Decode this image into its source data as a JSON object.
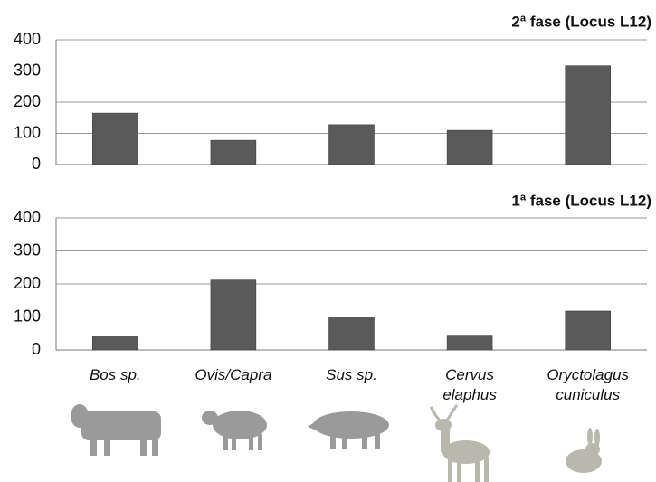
{
  "chart_data": [
    {
      "type": "bar",
      "title": "2ª fase (Locus L12)",
      "values": [
        165,
        78,
        128,
        110,
        317
      ],
      "color": "#5a5a5a",
      "ylim": [
        0,
        400
      ],
      "yticks": [
        0,
        100,
        200,
        300,
        400
      ],
      "grid": true
    },
    {
      "type": "bar",
      "title": "1ª fase (Locus L12)",
      "categories": [
        "Bos sp.",
        "Ovis/Capra",
        "Sus sp.",
        "Cervus elaphus",
        "Oryctolagus cuniculus"
      ],
      "values": [
        42,
        212,
        100,
        45,
        118
      ],
      "color": "#5a5a5a",
      "ylim": [
        0,
        400
      ],
      "yticks": [
        0,
        100,
        200,
        300,
        400
      ],
      "grid": true
    }
  ]
}
